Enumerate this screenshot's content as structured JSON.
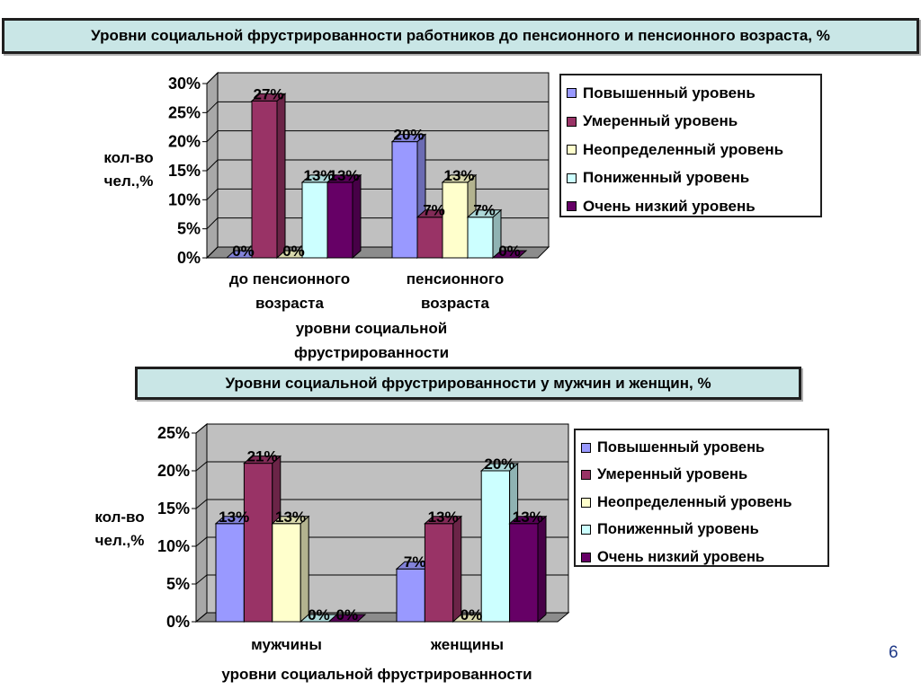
{
  "slide": {
    "title1": "Уровни социальной фрустрированности работников до пенсионного и пенсионного возраста, %",
    "title2": "Уровни социальной фрустрированности у мужчин и женщин, %",
    "page_number": "6"
  },
  "colors": {
    "series": [
      "#9999ff",
      "#993366",
      "#ffffcc",
      "#ccffff",
      "#660066"
    ],
    "plot_area": "#c0c0c0"
  },
  "chart_data": [
    {
      "type": "bar",
      "variant": "3d-clustered-column",
      "title": "Уровни социальной фрустрированности работников до пенсионного и пенсионного возраста, %",
      "ylabel_lines": [
        "кол-во",
        "чел.,%"
      ],
      "xlabel_lines": [
        "уровни социальной",
        "фрустрированности"
      ],
      "ylim": [
        0,
        30
      ],
      "ytick_values": [
        0,
        5,
        10,
        15,
        20,
        25,
        30
      ],
      "ytick_labels": [
        "0%",
        "5%",
        "10%",
        "15%",
        "20%",
        "25%",
        "30%"
      ],
      "categories": [
        "до пенсионного возраста",
        "пенсионного возраста"
      ],
      "category_lines": [
        [
          "до пенсионного",
          "возраста"
        ],
        [
          "пенсионного",
          "возраста"
        ]
      ],
      "series": [
        {
          "name": "Повышенный уровень",
          "values": [
            0,
            20
          ],
          "labels": [
            "0%",
            "20%"
          ]
        },
        {
          "name": "Умеренный уровень",
          "values": [
            27,
            7
          ],
          "labels": [
            "27%",
            "7%"
          ]
        },
        {
          "name": "Неопределенный уровень",
          "values": [
            0,
            13
          ],
          "labels": [
            "0%",
            "13%"
          ]
        },
        {
          "name": "Пониженный уровень",
          "values": [
            13,
            7
          ],
          "labels": [
            "13%",
            "7%"
          ]
        },
        {
          "name": "Очень низкий уровень",
          "values": [
            13,
            0
          ],
          "labels": [
            "13%",
            "0%"
          ]
        }
      ],
      "grid": true,
      "legend": "right"
    },
    {
      "type": "bar",
      "variant": "3d-clustered-column",
      "title": "Уровни социальной фрустрированности у мужчин и женщин, %",
      "ylabel_lines": [
        "кол-во",
        "чел.,%"
      ],
      "xlabel_lines": [
        "уровни социальной фрустрированности"
      ],
      "ylim": [
        0,
        25
      ],
      "ytick_values": [
        0,
        5,
        10,
        15,
        20,
        25
      ],
      "ytick_labels": [
        "0%",
        "5%",
        "10%",
        "15%",
        "20%",
        "25%"
      ],
      "categories": [
        "мужчины",
        "женщины"
      ],
      "category_lines": [
        [
          "мужчины"
        ],
        [
          "женщины"
        ]
      ],
      "series": [
        {
          "name": "Повышенный уровень",
          "values": [
            13,
            7
          ],
          "labels": [
            "13%",
            "7%"
          ]
        },
        {
          "name": "Умеренный уровень",
          "values": [
            21,
            13
          ],
          "labels": [
            "21%",
            "13%"
          ]
        },
        {
          "name": "Неопределенный уровень",
          "values": [
            13,
            0
          ],
          "labels": [
            "13%",
            "0%"
          ]
        },
        {
          "name": "Пониженный уровень",
          "values": [
            0,
            20
          ],
          "labels": [
            "0%",
            "20%"
          ]
        },
        {
          "name": "Очень низкий уровень",
          "values": [
            0,
            13
          ],
          "labels": [
            "0%",
            "13%"
          ]
        }
      ],
      "grid": true,
      "legend": "right"
    }
  ]
}
